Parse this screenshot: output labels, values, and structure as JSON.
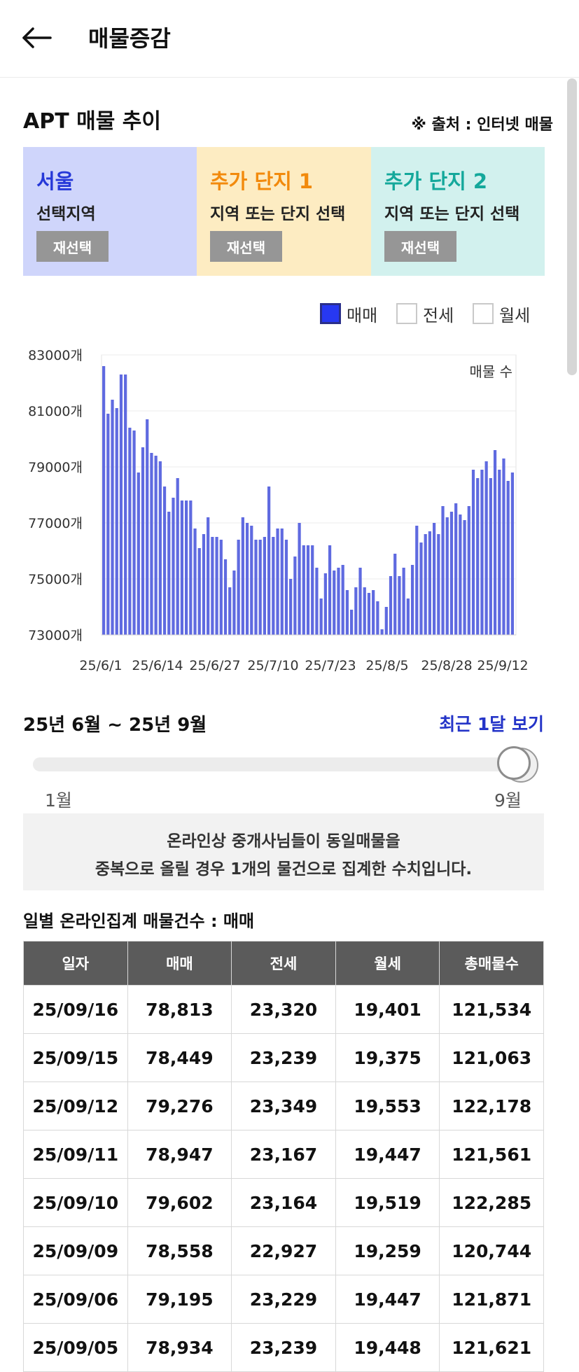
{
  "header": {
    "title": "매물증감"
  },
  "section": {
    "title": "APT 매물 추이",
    "source": "※ 출처 : 인터넷 매물"
  },
  "panels": [
    {
      "name": "서울",
      "sub": "선택지역",
      "button": "재선택",
      "color": "#2638d8"
    },
    {
      "name": "추가 단지 1",
      "sub": "지역 또는 단지 선택",
      "button": "재선택",
      "color": "#f28a0c"
    },
    {
      "name": "추가 단지 2",
      "sub": "지역 또는 단지 선택",
      "button": "재선택",
      "color": "#14a89b"
    }
  ],
  "legend": [
    {
      "label": "매매",
      "checked": true
    },
    {
      "label": "전세",
      "checked": false
    },
    {
      "label": "월세",
      "checked": false
    }
  ],
  "chart_data": {
    "type": "bar",
    "series_label": "매물 수",
    "ylim": [
      73000,
      83000
    ],
    "yticks": [
      "83000개",
      "81000개",
      "79000개",
      "77000개",
      "75000개",
      "73000개"
    ],
    "xticks": [
      "25/6/1",
      "25/6/14",
      "25/6/27",
      "25/7/10",
      "25/7/23",
      "25/8/5",
      "25/8/28",
      "25/9/12"
    ],
    "bar_color": "#5f6ae0",
    "values": [
      82600,
      80900,
      81400,
      81100,
      82300,
      82300,
      80400,
      80300,
      78800,
      79700,
      80700,
      79500,
      79400,
      79200,
      78300,
      77400,
      77900,
      78600,
      77800,
      77800,
      77800,
      76800,
      76100,
      76600,
      77200,
      76500,
      76500,
      76400,
      75700,
      74700,
      75300,
      76400,
      77200,
      77000,
      76900,
      76400,
      76400,
      76500,
      78300,
      76500,
      76800,
      76800,
      76400,
      75000,
      75800,
      77000,
      76200,
      76200,
      76200,
      75400,
      74300,
      75200,
      76200,
      75300,
      75400,
      75500,
      74600,
      73900,
      74700,
      75400,
      74700,
      74500,
      74600,
      74200,
      73200,
      74000,
      75100,
      75900,
      75100,
      75400,
      74300,
      75500,
      76900,
      76300,
      76600,
      76700,
      77000,
      76600,
      77600,
      77200,
      77400,
      77700,
      77300,
      77100,
      77600,
      78900,
      78600,
      78900,
      79200,
      78600,
      79600,
      78900,
      79300,
      78500,
      78800
    ]
  },
  "range": {
    "title": "25년 6월 ~ 25년 9월",
    "recent": "최근 1달 보기",
    "start_label": "1월",
    "end_label": "9월"
  },
  "notice": {
    "line1": "온라인상 중개사님들이 동일매물을",
    "line2": "중복으로 올릴 경우 1개의 물건으로 집계한 수치입니다."
  },
  "table": {
    "title": "일별 온라인집계 매물건수 : 매매",
    "headers": [
      "일자",
      "매매",
      "전세",
      "월세",
      "총매물수"
    ],
    "rows": [
      [
        "25/09/16",
        "78,813",
        "23,320",
        "19,401",
        "121,534"
      ],
      [
        "25/09/15",
        "78,449",
        "23,239",
        "19,375",
        "121,063"
      ],
      [
        "25/09/12",
        "79,276",
        "23,349",
        "19,553",
        "122,178"
      ],
      [
        "25/09/11",
        "78,947",
        "23,167",
        "19,447",
        "121,561"
      ],
      [
        "25/09/10",
        "79,602",
        "23,164",
        "19,519",
        "122,285"
      ],
      [
        "25/09/09",
        "78,558",
        "22,927",
        "19,259",
        "120,744"
      ],
      [
        "25/09/06",
        "79,195",
        "23,229",
        "19,447",
        "121,871"
      ],
      [
        "25/09/05",
        "78,934",
        "23,239",
        "19,448",
        "121,621"
      ]
    ]
  }
}
